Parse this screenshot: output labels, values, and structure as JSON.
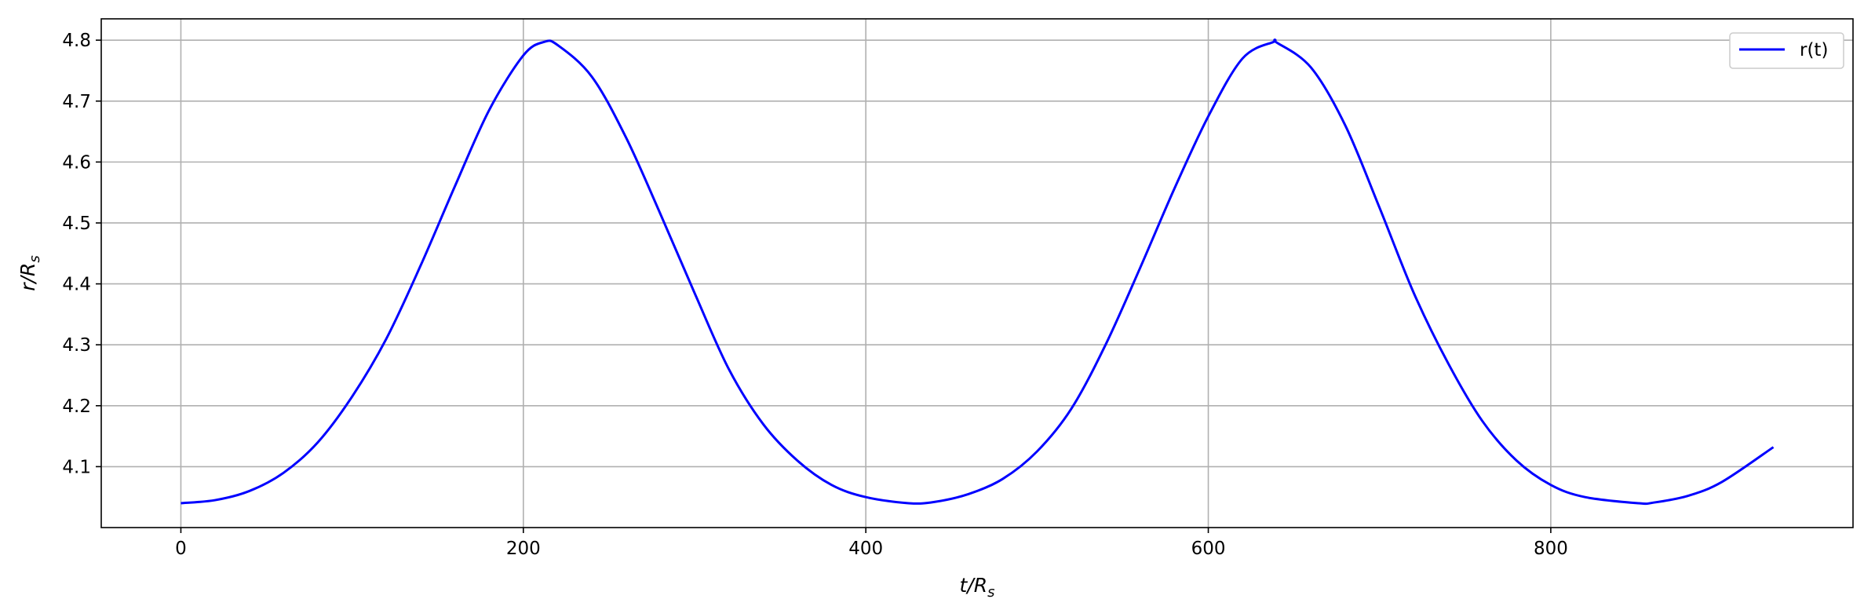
{
  "chart_data": {
    "type": "line",
    "title": "",
    "xlabel": "t/R_s",
    "ylabel": "r/R_s",
    "xlim": [
      -46.5,
      976.5
    ],
    "ylim": [
      4.0,
      4.835
    ],
    "xticks": [
      "0",
      "200",
      "400",
      "600",
      "800"
    ],
    "yticks": [
      "4.1",
      "4.2",
      "4.3",
      "4.4",
      "4.5",
      "4.6",
      "4.7",
      "4.8"
    ],
    "grid": true,
    "legend_position": "top-right",
    "series": [
      {
        "name": "r(t)",
        "color": "#0000ff",
        "x": [
          0,
          20,
          40,
          60,
          80,
          100,
          120,
          140,
          160,
          180,
          200,
          212,
          220,
          240,
          260,
          280,
          300,
          320,
          340,
          360,
          380,
          400,
          425,
          440,
          460,
          480,
          500,
          520,
          540,
          560,
          580,
          600,
          620,
          638,
          640,
          660,
          680,
          700,
          720,
          740,
          760,
          780,
          800,
          820,
          851,
          860,
          880,
          900,
          930
        ],
        "y": [
          4.04,
          4.045,
          4.06,
          4.09,
          4.14,
          4.215,
          4.31,
          4.43,
          4.56,
          4.685,
          4.775,
          4.797,
          4.792,
          4.74,
          4.64,
          4.515,
          4.385,
          4.26,
          4.17,
          4.11,
          4.07,
          4.05,
          4.04,
          4.042,
          4.055,
          4.08,
          4.125,
          4.195,
          4.3,
          4.425,
          4.555,
          4.675,
          4.77,
          4.797,
          4.796,
          4.755,
          4.66,
          4.525,
          4.385,
          4.27,
          4.175,
          4.11,
          4.07,
          4.05,
          4.04,
          4.041,
          4.052,
          4.075,
          4.132
        ]
      }
    ]
  }
}
